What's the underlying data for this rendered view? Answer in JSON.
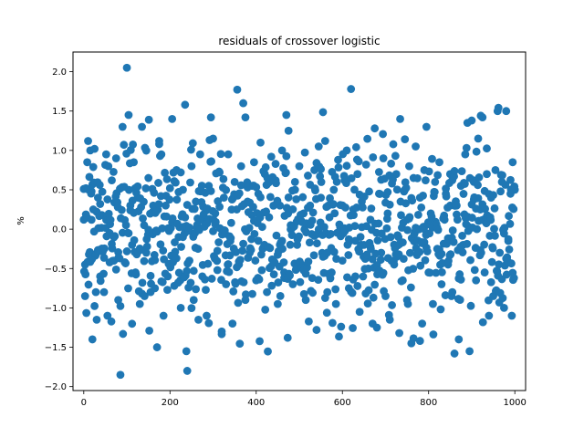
{
  "chart_data": {
    "type": "scatter",
    "title": "residuals of crossover logistic",
    "xlabel": "",
    "ylabel": "%",
    "xlim": [
      -25,
      1025
    ],
    "ylim": [
      -2.05,
      2.25
    ],
    "xticks": [
      0,
      200,
      400,
      600,
      800,
      1000
    ],
    "yticks": [
      -2.0,
      -1.5,
      -1.0,
      -0.5,
      0.0,
      0.5,
      1.0,
      1.5,
      2.0
    ],
    "grid": false,
    "marker_color": "#1f77b4",
    "point_count": 1000,
    "sampled_points": [
      [
        0,
        0.12
      ],
      [
        3,
        -0.85
      ],
      [
        5,
        0.52
      ],
      [
        8,
        0.85
      ],
      [
        10,
        1.12
      ],
      [
        12,
        -0.32
      ],
      [
        15,
        1.0
      ],
      [
        18,
        0.48
      ],
      [
        20,
        -1.4
      ],
      [
        22,
        0.25
      ],
      [
        25,
        1.02
      ],
      [
        28,
        -0.8
      ],
      [
        30,
        -1.15
      ],
      [
        33,
        0.4
      ],
      [
        38,
        -0.6
      ],
      [
        42,
        0.18
      ],
      [
        47,
        -0.8
      ],
      [
        52,
        0.95
      ],
      [
        55,
        -1.1
      ],
      [
        60,
        -0.05
      ],
      [
        65,
        0.62
      ],
      [
        70,
        -0.4
      ],
      [
        75,
        0.9
      ],
      [
        80,
        -0.9
      ],
      [
        85,
        -1.85
      ],
      [
        90,
        1.3
      ],
      [
        95,
        -0.42
      ],
      [
        100,
        2.05
      ],
      [
        104,
        1.45
      ],
      [
        108,
        0.3
      ],
      [
        112,
        -0.2
      ],
      [
        116,
        0.85
      ],
      [
        120,
        -0.55
      ],
      [
        125,
        0.4
      ],
      [
        130,
        -0.95
      ],
      [
        135,
        1.3
      ],
      [
        140,
        0.05
      ],
      [
        145,
        -0.3
      ],
      [
        150,
        0.65
      ],
      [
        155,
        -0.8
      ],
      [
        160,
        0.22
      ],
      [
        165,
        -0.75
      ],
      [
        170,
        -1.5
      ],
      [
        175,
        1.08
      ],
      [
        180,
        0.95
      ],
      [
        185,
        -1.1
      ],
      [
        190,
        0.3
      ],
      [
        195,
        -0.6
      ],
      [
        200,
        0.52
      ],
      [
        205,
        1.4
      ],
      [
        210,
        -0.72
      ],
      [
        215,
        0.75
      ],
      [
        220,
        -0.1
      ],
      [
        225,
        -1.0
      ],
      [
        230,
        0.5
      ],
      [
        235,
        1.58
      ],
      [
        238,
        -1.55
      ],
      [
        240,
        -1.8
      ],
      [
        245,
        -0.4
      ],
      [
        250,
        0.8
      ],
      [
        255,
        -0.9
      ],
      [
        260,
        0.35
      ],
      [
        265,
        -0.25
      ],
      [
        270,
        0.95
      ],
      [
        275,
        -0.6
      ],
      [
        280,
        0.1
      ],
      [
        285,
        -1.1
      ],
      [
        290,
        0.55
      ],
      [
        295,
        1.42
      ],
      [
        300,
        1.15
      ],
      [
        305,
        0.2
      ],
      [
        310,
        -0.52
      ],
      [
        315,
        0.72
      ],
      [
        320,
        -1.3
      ],
      [
        325,
        0.4
      ],
      [
        330,
        -0.7
      ],
      [
        335,
        0.95
      ],
      [
        340,
        -0.15
      ],
      [
        345,
        -1.2
      ],
      [
        350,
        0.6
      ],
      [
        355,
        0.25
      ],
      [
        360,
        -0.45
      ],
      [
        365,
        0.8
      ],
      [
        370,
        1.6
      ],
      [
        375,
        -0.9
      ],
      [
        380,
        0.35
      ],
      [
        385,
        -0.3
      ],
      [
        390,
        0.55
      ],
      [
        395,
        0.85
      ],
      [
        400,
        -0.65
      ],
      [
        405,
        0.45
      ],
      [
        410,
        1.1
      ],
      [
        415,
        -0.25
      ],
      [
        420,
        0.7
      ],
      [
        425,
        -0.8
      ],
      [
        430,
        0.15
      ],
      [
        435,
        0.92
      ],
      [
        440,
        -0.4
      ],
      [
        445,
        0.62
      ],
      [
        450,
        -0.95
      ],
      [
        455,
        0.3
      ],
      [
        460,
        1.0
      ],
      [
        465,
        -0.55
      ],
      [
        470,
        1.45
      ],
      [
        473,
        -1.38
      ],
      [
        475,
        1.25
      ],
      [
        480,
        0.05
      ],
      [
        485,
        -0.7
      ],
      [
        490,
        0.5
      ],
      [
        495,
        -0.2
      ],
      [
        500,
        0.8
      ],
      [
        505,
        -0.45
      ],
      [
        510,
        0.2
      ],
      [
        515,
        -0.9
      ],
      [
        520,
        0.68
      ],
      [
        525,
        0.3
      ],
      [
        530,
        -0.62
      ],
      [
        535,
        0.75
      ],
      [
        540,
        -1.28
      ],
      [
        545,
        1.05
      ],
      [
        550,
        0.4
      ],
      [
        555,
        -0.35
      ],
      [
        560,
        1.12
      ],
      [
        565,
        -0.8
      ],
      [
        570,
        0.15
      ],
      [
        575,
        -0.55
      ],
      [
        580,
        0.5
      ],
      [
        585,
        -0.95
      ],
      [
        590,
        0.88
      ],
      [
        595,
        0.02
      ],
      [
        600,
        -0.4
      ],
      [
        605,
        0.62
      ],
      [
        610,
        1.0
      ],
      [
        615,
        -0.75
      ],
      [
        620,
        1.78
      ],
      [
        625,
        0.25
      ],
      [
        630,
        -0.6
      ],
      [
        635,
        0.7
      ],
      [
        640,
        -1.05
      ],
      [
        645,
        0.35
      ],
      [
        650,
        -0.2
      ],
      [
        655,
        0.82
      ],
      [
        660,
        -0.5
      ],
      [
        665,
        0.12
      ],
      [
        670,
        -1.2
      ],
      [
        675,
        1.28
      ],
      [
        680,
        -1.25
      ],
      [
        685,
        0.45
      ],
      [
        690,
        -0.3
      ],
      [
        695,
        0.9
      ],
      [
        700,
        -0.85
      ],
      [
        705,
        0.2
      ],
      [
        710,
        -1.15
      ],
      [
        715,
        0.58
      ],
      [
        720,
        -0.45
      ],
      [
        725,
        0.7
      ],
      [
        730,
        -0.1
      ],
      [
        735,
        0.35
      ],
      [
        740,
        -0.65
      ],
      [
        745,
        0.5
      ],
      [
        750,
        -0.9
      ],
      [
        755,
        0.8
      ],
      [
        760,
        -1.45
      ],
      [
        765,
        0.65
      ],
      [
        770,
        1.05
      ],
      [
        775,
        -0.3
      ],
      [
        780,
        0.4
      ],
      [
        785,
        -1.2
      ],
      [
        790,
        0.75
      ],
      [
        795,
        1.3
      ],
      [
        800,
        -0.55
      ],
      [
        805,
        0.2
      ],
      [
        810,
        -0.95
      ],
      [
        815,
        0.6
      ],
      [
        820,
        -0.25
      ],
      [
        825,
        0.85
      ],
      [
        830,
        -0.7
      ],
      [
        835,
        0.15
      ],
      [
        840,
        0.45
      ],
      [
        845,
        -0.45
      ],
      [
        850,
        0.7
      ],
      [
        855,
        -0.8
      ],
      [
        860,
        -1.58
      ],
      [
        865,
        0.3
      ],
      [
        870,
        -1.4
      ],
      [
        875,
        0.55
      ],
      [
        880,
        -0.2
      ],
      [
        885,
        0.95
      ],
      [
        890,
        1.35
      ],
      [
        895,
        -1.55
      ],
      [
        900,
        1.38
      ],
      [
        905,
        0.6
      ],
      [
        910,
        -0.65
      ],
      [
        915,
        1.15
      ],
      [
        920,
        0.25
      ],
      [
        925,
        1.42
      ],
      [
        930,
        -0.55
      ],
      [
        935,
        0.7
      ],
      [
        940,
        -1.1
      ],
      [
        945,
        0.4
      ],
      [
        950,
        -0.85
      ],
      [
        955,
        0.75
      ],
      [
        960,
        1.5
      ],
      [
        965,
        -0.3
      ],
      [
        970,
        0.6
      ],
      [
        975,
        -1.0
      ],
      [
        980,
        1.5
      ],
      [
        985,
        -0.15
      ],
      [
        990,
        0.45
      ],
      [
        993,
        -1.1
      ],
      [
        995,
        0.85
      ],
      [
        998,
        -0.62
      ],
      [
        1000,
        0.5
      ]
    ]
  }
}
